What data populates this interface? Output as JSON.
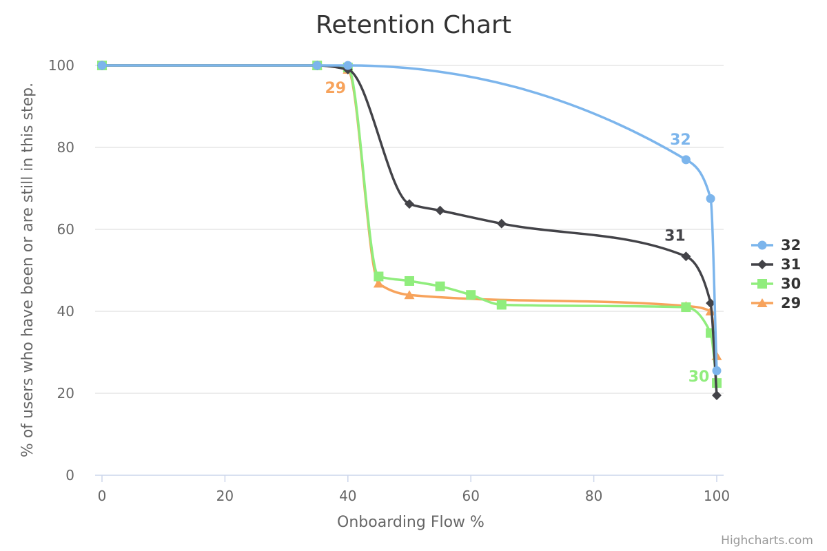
{
  "chart_data": {
    "type": "line",
    "title": "Retention Chart",
    "xlabel": "Onboarding Flow %",
    "ylabel": "% of users who have been or are still in this step.",
    "xlim": [
      0,
      100
    ],
    "ylim": [
      0,
      100
    ],
    "xticks": [
      0,
      20,
      40,
      60,
      80,
      100
    ],
    "yticks": [
      0,
      20,
      40,
      60,
      80,
      100
    ],
    "grid": true,
    "legend_position": "right",
    "credits": "Highcharts.com",
    "series": [
      {
        "name": "32",
        "color": "#7cb5ec",
        "marker": "circle",
        "label": {
          "text": "32",
          "x": 95,
          "y": 77
        },
        "points": [
          [
            0,
            100
          ],
          [
            35,
            100
          ],
          [
            40,
            100
          ],
          [
            95,
            77
          ],
          [
            99,
            67.5
          ],
          [
            100,
            25.5
          ]
        ]
      },
      {
        "name": "31",
        "color": "#434348",
        "marker": "diamond",
        "label": {
          "text": "31",
          "x": 95,
          "y": 53.5
        },
        "points": [
          [
            0,
            100
          ],
          [
            35,
            100
          ],
          [
            40,
            99
          ],
          [
            50,
            66.2
          ],
          [
            55,
            64.6
          ],
          [
            65,
            61.4
          ],
          [
            95,
            53.4
          ],
          [
            99,
            42
          ],
          [
            100,
            19.5
          ]
        ]
      },
      {
        "name": "30",
        "color": "#90ed7d",
        "marker": "square",
        "label": {
          "text": "30",
          "x": 100,
          "y": 22.5
        },
        "points": [
          [
            0,
            100
          ],
          [
            35,
            100
          ],
          [
            40,
            99.5
          ],
          [
            45,
            48.5
          ],
          [
            50,
            47.4
          ],
          [
            55,
            46.1
          ],
          [
            60,
            44
          ],
          [
            65,
            41.6
          ],
          [
            95,
            41
          ],
          [
            99,
            34.7
          ],
          [
            100,
            22.5
          ]
        ]
      },
      {
        "name": "29",
        "color": "#f7a35c",
        "marker": "triangle",
        "label": {
          "text": "29",
          "x": 40,
          "y": 99
        },
        "points": [
          [
            0,
            100
          ],
          [
            35,
            100
          ],
          [
            40,
            99
          ],
          [
            45,
            46.8
          ],
          [
            50,
            44
          ],
          [
            95,
            41.3
          ],
          [
            99,
            40
          ],
          [
            100,
            29.1
          ]
        ]
      }
    ]
  }
}
